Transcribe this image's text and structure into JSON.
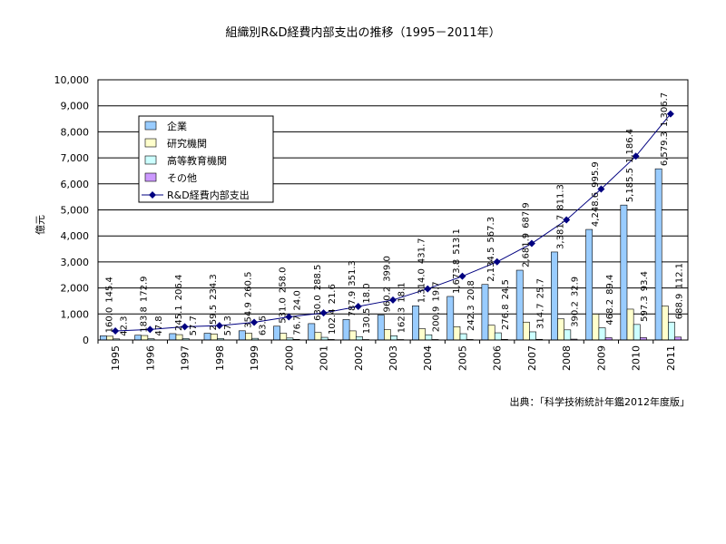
{
  "chart_data": {
    "type": "bar",
    "title": "組織別R&D経費内部支出の推移（1995－2011年）",
    "ylabel": "億元",
    "xlabel": "",
    "ylim": [
      0,
      10000
    ],
    "yticks": [
      "0",
      "1,000",
      "2,000",
      "3,000",
      "4,000",
      "5,000",
      "6,000",
      "7,000",
      "8,000",
      "9,000",
      "10,000"
    ],
    "categories": [
      "1995",
      "1996",
      "1997",
      "1998",
      "1999",
      "2000",
      "2001",
      "2002",
      "2003",
      "2004",
      "2005",
      "2006",
      "2007",
      "2008",
      "2009",
      "2010",
      "2011"
    ],
    "series": [
      {
        "name": "企業",
        "kind": "bar",
        "color": "#99ccff",
        "values": [
          160.0,
          183.8,
          245.1,
          259.5,
          354.9,
          531.0,
          630.0,
          787.9,
          960.2,
          1314.0,
          1673.8,
          2134.5,
          2681.9,
          3381.7,
          4248.6,
          5185.5,
          6579.3
        ],
        "labels": [
          "160.0",
          "183.8",
          "245.1",
          "259.5",
          "354.9",
          "531.0",
          "630.0",
          "787.9",
          "960.2",
          "1,314.0",
          "1,673.8",
          "2,134.5",
          "2,681.9",
          "3,381.7",
          "4,248.6",
          "5,185.5",
          "6,579.3"
        ]
      },
      {
        "name": "研究機関",
        "kind": "bar",
        "color": "#ffffcc",
        "values": [
          145.4,
          172.9,
          206.4,
          234.3,
          260.5,
          258.0,
          288.5,
          351.3,
          399.0,
          431.7,
          513.1,
          567.3,
          687.9,
          811.3,
          995.9,
          1186.4,
          1306.7
        ],
        "labels": [
          "145.4",
          "172.9",
          "206.4",
          "234.3",
          "260.5",
          "258.0",
          "288.5",
          "351.3",
          "399.0",
          "431.7",
          "513.1",
          "567.3",
          "687.9",
          "811.3",
          "995.9",
          "1,186.4",
          "1,306.7"
        ]
      },
      {
        "name": "高等教育機関",
        "kind": "bar",
        "color": "#ccffff",
        "values": [
          42.3,
          47.8,
          57.7,
          57.3,
          63.5,
          76.7,
          102.4,
          130.5,
          162.3,
          200.9,
          242.3,
          276.8,
          314.7,
          390.2,
          468.2,
          597.3,
          688.9
        ],
        "labels": [
          "42.3",
          "47.8",
          "57.7",
          "57.3",
          "63.5",
          "76.7",
          "102.4",
          "130.5",
          "162.3",
          "200.9",
          "242.3",
          "276.8",
          "314.7",
          "390.2",
          "468.2",
          "597.3",
          "688.9"
        ]
      },
      {
        "name": "その他",
        "kind": "bar",
        "color": "#cc99ff",
        "values": [
          0,
          0,
          0,
          0,
          0,
          24.0,
          21.6,
          18.0,
          18.1,
          19.7,
          20.8,
          24.5,
          25.7,
          32.9,
          89.4,
          93.4,
          112.1
        ],
        "labels": [
          "",
          "",
          "",
          "",
          "",
          "24.0",
          "21.6",
          "18.0",
          "18.1",
          "19.7",
          "20.8",
          "24.5",
          "25.7",
          "32.9",
          "89.4",
          "93.4",
          "112.1"
        ]
      },
      {
        "name": "R&D経費内部支出",
        "kind": "line",
        "color": "#000080",
        "values": [
          347.7,
          404.5,
          509.2,
          551.1,
          678.9,
          889.7,
          1042.5,
          1287.7,
          1539.6,
          1966.3,
          2450.0,
          3003.1,
          3710.2,
          4616.1,
          5802.1,
          7062.6,
          8687.0
        ]
      }
    ],
    "legend_position": "top-left",
    "grid": true,
    "source": "出典：「科学技術統計年鑑2012年度版」"
  }
}
